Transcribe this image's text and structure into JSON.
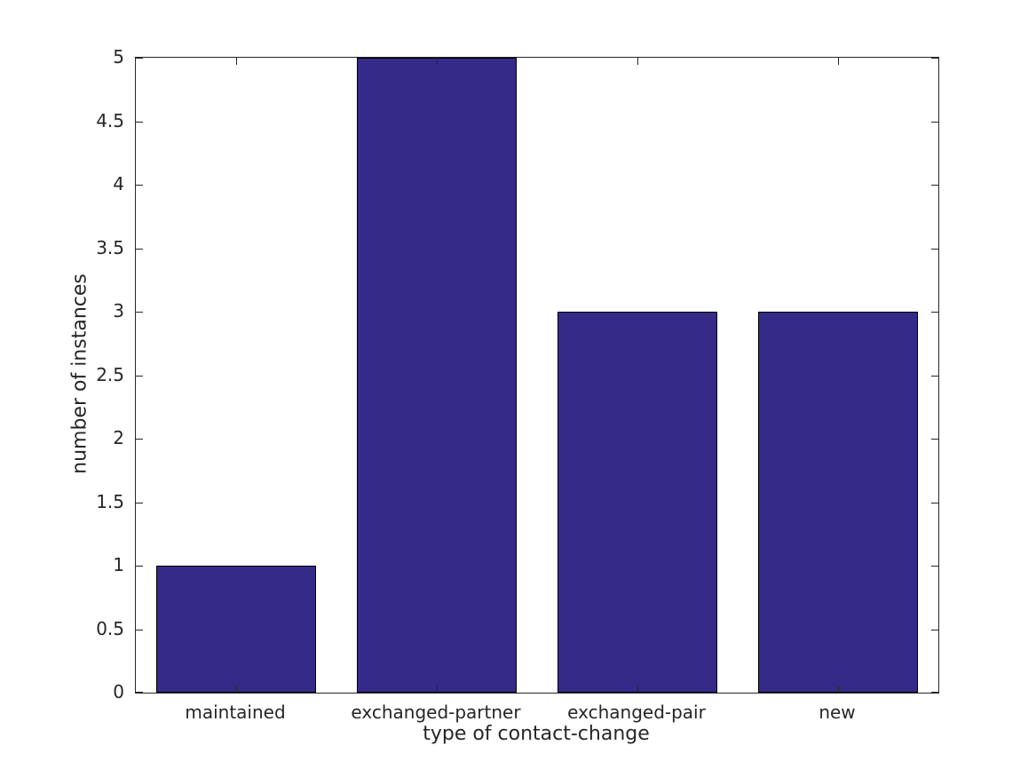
{
  "chart_data": {
    "type": "bar",
    "categories": [
      "maintained",
      "exchanged-partner",
      "exchanged-pair",
      "new"
    ],
    "values": [
      1,
      5,
      3,
      3
    ],
    "title": "",
    "xlabel": "type of contact-change",
    "ylabel": "number of instances",
    "ylim": [
      0,
      5
    ],
    "ytick_step": 0.5,
    "ytick_labels": [
      "0",
      "0.5",
      "1",
      "1.5",
      "2",
      "2.5",
      "3",
      "3.5",
      "4",
      "4.5",
      "5"
    ],
    "bar_width_fraction": 0.8,
    "bar_color": "#352A87",
    "bar_edge_color": "#000000",
    "axis_color": "#262626",
    "text_color": "#262626",
    "background_color": "#FFFFFF",
    "grid": false,
    "legend_position": "none",
    "box": true,
    "tick_direction": "in"
  }
}
